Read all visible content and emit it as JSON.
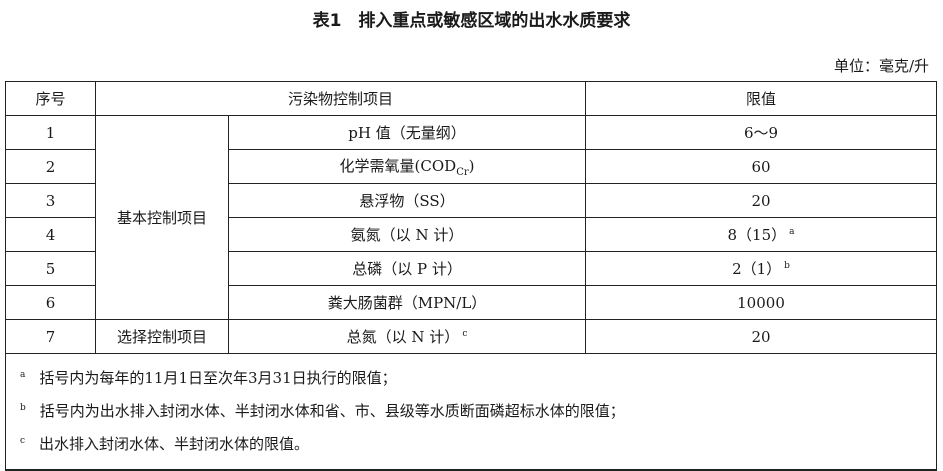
{
  "title": "表1　排入重点或敏感区域的出水水质要求",
  "unit": "单位：毫克/升",
  "headers": {
    "index": "序号",
    "item": "污染物控制项目",
    "limit": "限值"
  },
  "groups": {
    "basic": "基本控制项目",
    "optional": "选择控制项目"
  },
  "rows": [
    {
      "index": "1",
      "item": "pH 值（无量纲）",
      "limit": "6～9"
    },
    {
      "index": "2",
      "item": "化学需氧量(COD",
      "item_sub": "Cr",
      "item_end": ")",
      "limit": "60"
    },
    {
      "index": "3",
      "item": "悬浮物（SS）",
      "limit": "20"
    },
    {
      "index": "4",
      "item": "氨氮（以 N 计）",
      "limit": "8（15）",
      "limit_sup": "a"
    },
    {
      "index": "5",
      "item": "总磷（以 P 计）",
      "limit": "2（1）",
      "limit_sup": "b"
    },
    {
      "index": "6",
      "item": "粪大肠菌群（MPN/L）",
      "limit": "10000"
    },
    {
      "index": "7",
      "item": "总氮（以 N 计）",
      "item_sup": "c",
      "limit": "20"
    }
  ],
  "notes": [
    {
      "mark": "a",
      "text": "括号内为每年的11月1日至次年3月31日执行的限值；"
    },
    {
      "mark": "b",
      "text": "括号内为出水排入封闭水体、半封闭水体和省、市、县级等水质断面磷超标水体的限值；"
    },
    {
      "mark": "c",
      "text": "出水排入封闭水体、半封闭水体的限值。"
    }
  ]
}
